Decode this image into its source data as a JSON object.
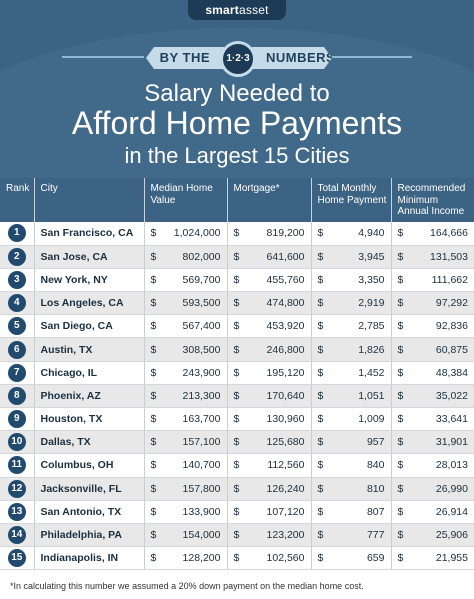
{
  "brand": {
    "smart": "smart",
    "asset": "asset"
  },
  "header": {
    "by_the": "BY THE",
    "badge": "1·2·3",
    "numbers": "NUMBERS",
    "title_line1": "Salary Needed to",
    "title_line2": "Afford Home Payments",
    "title_line3": "in the Largest 15 Cities"
  },
  "table": {
    "columns": [
      "Rank",
      "City",
      "Median Home Value",
      "Mortgage*",
      "Total Monthly Home Payment",
      "Recommended Minimum Annual Income"
    ],
    "currency": "$",
    "rows": [
      {
        "rank": "1",
        "city": "San Francisco, CA",
        "median": "1,024,000",
        "mortgage": "819,200",
        "monthly": "4,940",
        "income": "164,666"
      },
      {
        "rank": "2",
        "city": "San Jose, CA",
        "median": "802,000",
        "mortgage": "641,600",
        "monthly": "3,945",
        "income": "131,503"
      },
      {
        "rank": "3",
        "city": "New York, NY",
        "median": "569,700",
        "mortgage": "455,760",
        "monthly": "3,350",
        "income": "111,662"
      },
      {
        "rank": "4",
        "city": "Los Angeles, CA",
        "median": "593,500",
        "mortgage": "474,800",
        "monthly": "2,919",
        "income": "97,292"
      },
      {
        "rank": "5",
        "city": "San Diego, CA",
        "median": "567,400",
        "mortgage": "453,920",
        "monthly": "2,785",
        "income": "92,836"
      },
      {
        "rank": "6",
        "city": "Austin, TX",
        "median": "308,500",
        "mortgage": "246,800",
        "monthly": "1,826",
        "income": "60,875"
      },
      {
        "rank": "7",
        "city": "Chicago, IL",
        "median": "243,900",
        "mortgage": "195,120",
        "monthly": "1,452",
        "income": "48,384"
      },
      {
        "rank": "8",
        "city": "Phoenix, AZ",
        "median": "213,300",
        "mortgage": "170,640",
        "monthly": "1,051",
        "income": "35,022"
      },
      {
        "rank": "9",
        "city": "Houston, TX",
        "median": "163,700",
        "mortgage": "130,960",
        "monthly": "1,009",
        "income": "33,641"
      },
      {
        "rank": "10",
        "city": "Dallas, TX",
        "median": "157,100",
        "mortgage": "125,680",
        "monthly": "957",
        "income": "31,901"
      },
      {
        "rank": "11",
        "city": "Columbus, OH",
        "median": "140,700",
        "mortgage": "112,560",
        "monthly": "840",
        "income": "28,013"
      },
      {
        "rank": "12",
        "city": "Jacksonville, FL",
        "median": "157,800",
        "mortgage": "126,240",
        "monthly": "810",
        "income": "26,990"
      },
      {
        "rank": "13",
        "city": "San Antonio, TX",
        "median": "133,900",
        "mortgage": "107,120",
        "monthly": "807",
        "income": "26,914"
      },
      {
        "rank": "14",
        "city": "Philadelphia, PA",
        "median": "154,000",
        "mortgage": "123,200",
        "monthly": "777",
        "income": "25,906"
      },
      {
        "rank": "15",
        "city": "Indianapolis, IN",
        "median": "128,200",
        "mortgage": "102,560",
        "monthly": "659",
        "income": "21,955"
      }
    ]
  },
  "footnote": "*In calculating this number we assumed a 20% down payment on the median home cost.",
  "colors": {
    "header_blue": "#3d6384",
    "rank_blue": "#214a6e",
    "ribbon": "#c5dbe9",
    "stripe": "#e8e8e8"
  }
}
